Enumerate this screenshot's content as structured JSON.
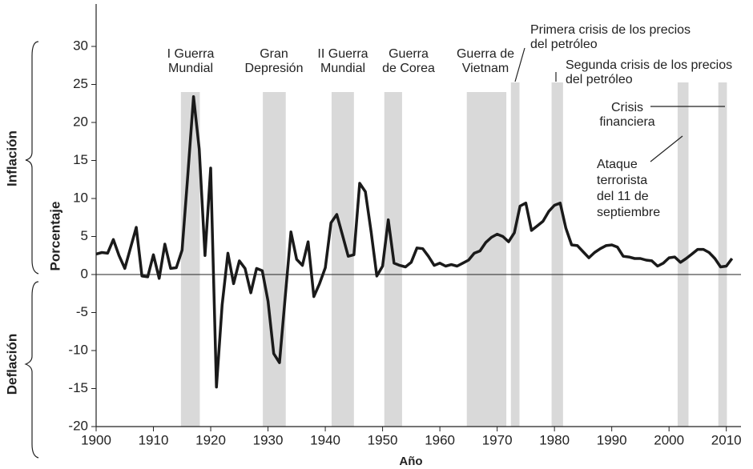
{
  "chart_data": {
    "type": "line",
    "x_label": "Año",
    "y_label": "Porcentaje",
    "annotations": [
      "Inflación",
      "Deflación"
    ],
    "x": [
      1900,
      1901,
      1902,
      1903,
      1904,
      1905,
      1906,
      1907,
      1908,
      1909,
      1910,
      1911,
      1912,
      1913,
      1914,
      1915,
      1916,
      1917,
      1918,
      1919,
      1920,
      1921,
      1922,
      1923,
      1924,
      1925,
      1926,
      1927,
      1928,
      1929,
      1930,
      1931,
      1932,
      1933,
      1934,
      1935,
      1936,
      1937,
      1938,
      1939,
      1940,
      1941,
      1942,
      1943,
      1944,
      1945,
      1946,
      1947,
      1948,
      1949,
      1950,
      1951,
      1952,
      1953,
      1954,
      1955,
      1956,
      1957,
      1958,
      1959,
      1960,
      1961,
      1962,
      1963,
      1964,
      1965,
      1966,
      1967,
      1968,
      1969,
      1970,
      1971,
      1972,
      1973,
      1974,
      1975,
      1976,
      1977,
      1978,
      1979,
      1980,
      1981,
      1982,
      1983,
      1984,
      1985,
      1986,
      1987,
      1988,
      1989,
      1990,
      1991,
      1992,
      1993,
      1994,
      1995,
      1996,
      1997,
      1998,
      1999,
      2000,
      2001,
      2002,
      2003,
      2004,
      2005,
      2006,
      2007,
      2008,
      2009,
      2010,
      2011
    ],
    "values": [
      2.7,
      2.9,
      2.8,
      4.6,
      2.5,
      0.8,
      3.5,
      6.2,
      -0.2,
      -0.3,
      2.6,
      -0.5,
      4.0,
      0.8,
      0.9,
      3.2,
      13,
      23.4,
      16.5,
      2.5,
      14,
      -14.8,
      -4,
      2.8,
      -1.2,
      1.8,
      0.8,
      -2.4,
      0.8,
      0.5,
      -3.5,
      -10.4,
      -11.6,
      -3,
      5.6,
      2.0,
      1.2,
      4.3,
      -2.9,
      -1.2,
      0.9,
      6.8,
      7.9,
      5.2,
      2.4,
      2.6,
      12,
      10.9,
      5.6,
      -0.2,
      1.1,
      7.2,
      1.5,
      1.2,
      1.0,
      1.6,
      3.5,
      3.4,
      2.4,
      1.2,
      1.5,
      1.1,
      1.3,
      1.1,
      1.5,
      1.9,
      2.8,
      3.1,
      4.2,
      4.9,
      5.3,
      5.0,
      4.3,
      5.5,
      9.0,
      9.4,
      5.8,
      6.4,
      7.0,
      8.3,
      9.1,
      9.4,
      6.1,
      3.9,
      3.8,
      3.0,
      2.2,
      2.9,
      3.4,
      3.8,
      3.9,
      3.6,
      2.4,
      2.3,
      2.1,
      2.1,
      1.9,
      1.8,
      1.1,
      1.5,
      2.2,
      2.3,
      1.6,
      2.1,
      2.7,
      3.3,
      3.3,
      2.9,
      2.1,
      1.0,
      1.1,
      2.1
    ],
    "color": "#1a1a1a",
    "band_color": "#d9d9d9",
    "bands": [
      {
        "start": 1914.8,
        "end": 1918.1,
        "label": [
          "I Guerra",
          "Mundial"
        ]
      },
      {
        "start": 1929.1,
        "end": 1933.1,
        "label": [
          "Gran",
          "Depresión"
        ]
      },
      {
        "start": 1941.1,
        "end": 1945.0,
        "label": [
          "II Guerra",
          "Mundial"
        ]
      },
      {
        "start": 1950.3,
        "end": 1953.4,
        "label": [
          "Guerra",
          "de Corea"
        ]
      },
      {
        "start": 1964.7,
        "end": 1971.6,
        "label": [
          "Guerra de",
          "Vietnam"
        ]
      },
      {
        "start": 1972.4,
        "end": 1973.9,
        "label": [
          "Primera crisis de los precios",
          "del petróleo"
        ]
      },
      {
        "start": 1979.5,
        "end": 1981.5,
        "label": [
          "Segunda crisis de los precios",
          "del petróleo"
        ]
      },
      {
        "start": 2001.5,
        "end": 2003.4,
        "label": [
          "Ataque",
          "terrorista",
          "del 11 de",
          "septiembre"
        ]
      },
      {
        "start": 2008.6,
        "end": 2010.1,
        "label": [
          "Crisis",
          "financiera"
        ]
      }
    ],
    "xlim": [
      1900,
      2012
    ],
    "ylim": [
      -20,
      35
    ],
    "xticks": [
      1900,
      1910,
      1920,
      1930,
      1940,
      1950,
      1960,
      1970,
      1980,
      1990,
      2000,
      2010
    ],
    "yticks": [
      -20,
      -15,
      -10,
      -5,
      0,
      5,
      10,
      15,
      20,
      25,
      30
    ],
    "grid": false
  }
}
